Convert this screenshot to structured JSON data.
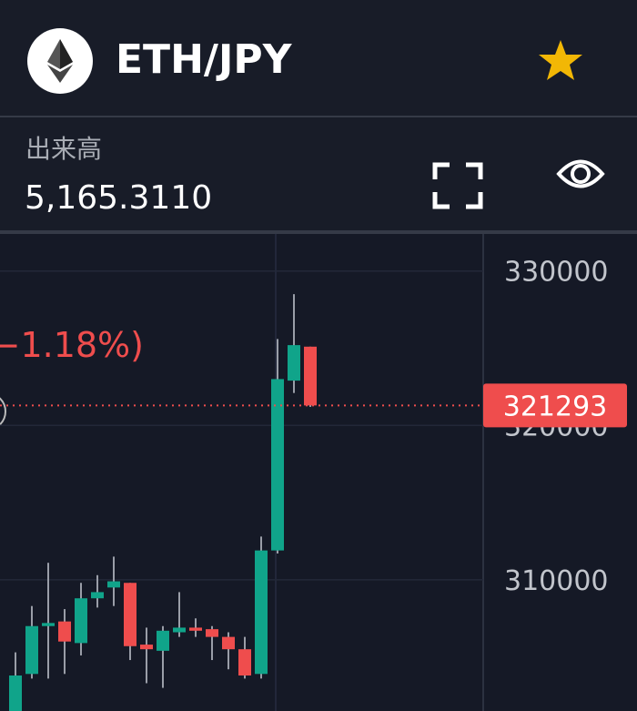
{
  "header": {
    "pair": "ETH/JPY"
  },
  "stats": {
    "volume_label": "出来高",
    "volume": "5,165.3110"
  },
  "chart_data": {
    "type": "candlestick",
    "change_text": "−1.18%)",
    "open": [
      301500,
      303900,
      307000,
      307300,
      305900,
      308800,
      309500,
      309800,
      305800,
      305400,
      306600,
      306900,
      306800,
      306300,
      305500,
      303900,
      311900,
      322900,
      325100
    ],
    "high": [
      305300,
      308300,
      311100,
      308100,
      309800,
      310300,
      311500,
      309800,
      306900,
      307000,
      309200,
      307500,
      307000,
      306600,
      306300,
      312800,
      325600,
      328500,
      325100
    ],
    "low": [
      301500,
      303600,
      303600,
      303900,
      305100,
      308200,
      308300,
      304800,
      303300,
      303000,
      306300,
      306300,
      304800,
      304200,
      303600,
      303600,
      311700,
      322100,
      321200
    ],
    "close": [
      303800,
      307000,
      307200,
      306000,
      308800,
      309200,
      309900,
      305700,
      305500,
      306700,
      306900,
      306700,
      306300,
      305500,
      303800,
      311900,
      323000,
      325200,
      321293
    ],
    "up_color": "#10a48a",
    "down_color": "#ef4d4d",
    "last_price": 321293,
    "ylim": [
      301500,
      332400
    ],
    "yticks": [
      310000,
      320000,
      330000
    ],
    "grid": true
  }
}
